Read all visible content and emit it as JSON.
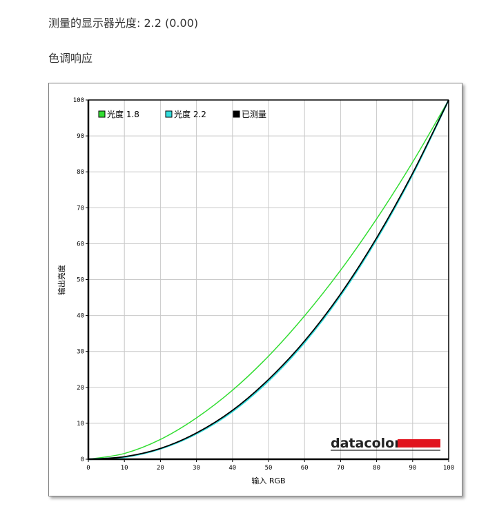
{
  "header": {
    "measured_gamma": "测量的显示器光度:  2.2 (0.00)",
    "section_title": "色调响应"
  },
  "logo": {
    "text": "datacolor",
    "accent_color": "#e1141e"
  },
  "chart_data": {
    "type": "line",
    "xlabel": "输入 RGB",
    "ylabel": "输出亮度",
    "xlim": [
      0,
      100
    ],
    "ylim": [
      0,
      100
    ],
    "xticks": [
      0,
      10,
      20,
      30,
      40,
      50,
      60,
      70,
      80,
      90,
      100
    ],
    "yticks": [
      0,
      10,
      20,
      30,
      40,
      50,
      60,
      70,
      80,
      90,
      100
    ],
    "grid": true,
    "legend_position": "top-left",
    "series": [
      {
        "name": "光度 1.8",
        "color": "#33dd33",
        "x": [
          0,
          10,
          20,
          30,
          40,
          50,
          60,
          70,
          80,
          90,
          100
        ],
        "y": [
          0,
          1.6,
          5.5,
          11.5,
          19.2,
          28.7,
          39.9,
          52.6,
          66.9,
          82.7,
          100
        ]
      },
      {
        "name": "光度 2.2",
        "color": "#33dddd",
        "x": [
          0,
          10,
          20,
          30,
          40,
          50,
          60,
          70,
          80,
          90,
          100
        ],
        "y": [
          0,
          0.6,
          2.9,
          7.1,
          13.3,
          21.8,
          32.5,
          45.6,
          61.2,
          79.3,
          100
        ]
      },
      {
        "name": "已测量",
        "color": "#000000",
        "x": [
          0,
          10,
          20,
          30,
          40,
          50,
          60,
          70,
          80,
          90,
          100
        ],
        "y": [
          0,
          0.7,
          3.0,
          7.3,
          13.6,
          22.2,
          32.9,
          46.0,
          61.6,
          79.6,
          100
        ]
      }
    ]
  }
}
